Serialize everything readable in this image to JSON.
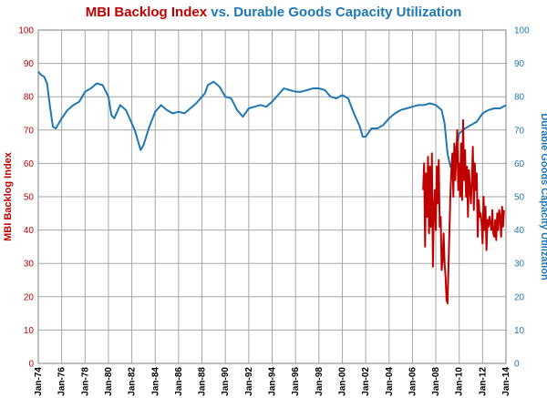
{
  "chart_data": {
    "type": "line",
    "title": {
      "part1": "MBI Backlog Index",
      "part2": " vs. ",
      "part3": "Durable Goods Capacity Utilization"
    },
    "ylabel_left": "MBI Backlog Index",
    "ylabel_right": "Durable Goods Capacity Utilization",
    "ylim": [
      0,
      100
    ],
    "yticks": [
      0,
      10,
      20,
      30,
      40,
      50,
      60,
      70,
      80,
      90,
      100
    ],
    "xlim": [
      "1974-01",
      "2014-01"
    ],
    "xticks": [
      "Jan-74",
      "Jan-76",
      "Jan-78",
      "Jan-80",
      "Jan-82",
      "Jan-84",
      "Jan-86",
      "Jan-88",
      "Jan-90",
      "Jan-92",
      "Jan-94",
      "Jan-96",
      "Jan-98",
      "Jan-00",
      "Jan-02",
      "Jan-04",
      "Jan-06",
      "Jan-08",
      "Jan-10",
      "Jan-12",
      "Jan-14"
    ],
    "grid": true,
    "colors": {
      "backlog": "#c00000",
      "capacity": "#1f78b4",
      "title_left": "#c00000",
      "title_right": "#1f78b4",
      "grid": "#a6a6a6"
    },
    "series": [
      {
        "key": "capacity",
        "axis": "right",
        "x": [
          "1974-01",
          "1974-04",
          "1974-07",
          "1974-10",
          "1975-01",
          "1975-04",
          "1975-07",
          "1976-01",
          "1976-07",
          "1977-01",
          "1977-07",
          "1978-01",
          "1978-07",
          "1979-01",
          "1979-07",
          "1980-01",
          "1980-04",
          "1980-07",
          "1980-10",
          "1981-01",
          "1981-07",
          "1981-10",
          "1982-04",
          "1982-07",
          "1982-10",
          "1983-01",
          "1983-07",
          "1984-01",
          "1984-07",
          "1985-01",
          "1985-07",
          "1986-01",
          "1986-07",
          "1987-01",
          "1987-07",
          "1988-01",
          "1988-04",
          "1988-07",
          "1989-01",
          "1989-07",
          "1990-01",
          "1990-07",
          "1991-01",
          "1991-07",
          "1992-01",
          "1992-07",
          "1993-01",
          "1993-07",
          "1994-01",
          "1994-07",
          "1995-01",
          "1995-07",
          "1996-01",
          "1996-07",
          "1997-01",
          "1997-07",
          "1998-01",
          "1998-07",
          "1999-01",
          "1999-07",
          "2000-01",
          "2000-07",
          "2001-01",
          "2001-07",
          "2001-10",
          "2002-01",
          "2002-07",
          "2003-01",
          "2003-07",
          "2004-01",
          "2004-07",
          "2005-01",
          "2005-07",
          "2006-01",
          "2006-07",
          "2007-01",
          "2007-07",
          "2008-01",
          "2008-07",
          "2008-10",
          "2009-01",
          "2009-04",
          "2009-07",
          "2009-10",
          "2010-01",
          "2010-07",
          "2011-01",
          "2011-07",
          "2012-01",
          "2012-07",
          "2013-01",
          "2013-07",
          "2014-01"
        ],
        "values": [
          87.5,
          86.5,
          86,
          84,
          77,
          71,
          70.5,
          73.5,
          76,
          77.5,
          78.5,
          81.5,
          82.5,
          84,
          83.5,
          80,
          74.5,
          73.5,
          75.5,
          77.5,
          76,
          74,
          70,
          67,
          64,
          65.5,
          71,
          75.5,
          77.5,
          76,
          75,
          75.5,
          75,
          76.5,
          78,
          80,
          81,
          83.5,
          84.5,
          83,
          80,
          79.5,
          76,
          74,
          76.5,
          77,
          77.5,
          77,
          78.5,
          80.5,
          82.5,
          82,
          81.5,
          81.5,
          82,
          82.5,
          82.5,
          82,
          80,
          79.5,
          80.5,
          79.5,
          75,
          71,
          68,
          68,
          70.5,
          70.5,
          71.5,
          73.5,
          75,
          76,
          76.5,
          77,
          77.5,
          77.5,
          78,
          77.5,
          76,
          72,
          63,
          59,
          61,
          65,
          69,
          70.5,
          71.5,
          72.5,
          75,
          76,
          76.5,
          76.5,
          77.5
        ]
      },
      {
        "key": "backlog",
        "axis": "left",
        "x": [
          "2006-12",
          "2007-01",
          "2007-02",
          "2007-03",
          "2007-04",
          "2007-05",
          "2007-06",
          "2007-07",
          "2007-08",
          "2007-09",
          "2007-10",
          "2007-11",
          "2007-12",
          "2008-01",
          "2008-02",
          "2008-03",
          "2008-04",
          "2008-05",
          "2008-06",
          "2008-07",
          "2008-08",
          "2008-09",
          "2008-10",
          "2008-11",
          "2008-12",
          "2009-01",
          "2009-02",
          "2009-03",
          "2009-04",
          "2009-05",
          "2009-06",
          "2009-07",
          "2009-08",
          "2009-09",
          "2009-10",
          "2009-11",
          "2009-12",
          "2010-01",
          "2010-02",
          "2010-03",
          "2010-04",
          "2010-05",
          "2010-06",
          "2010-07",
          "2010-08",
          "2010-09",
          "2010-10",
          "2010-11",
          "2010-12",
          "2011-01",
          "2011-02",
          "2011-03",
          "2011-04",
          "2011-05",
          "2011-06",
          "2011-07",
          "2011-08",
          "2011-09",
          "2011-10",
          "2011-11",
          "2011-12",
          "2012-01",
          "2012-02",
          "2012-03",
          "2012-04",
          "2012-05",
          "2012-06",
          "2012-07",
          "2012-08",
          "2012-09",
          "2012-10",
          "2012-11",
          "2012-12",
          "2013-01",
          "2013-02",
          "2013-03",
          "2013-04",
          "2013-05",
          "2013-06",
          "2013-07",
          "2013-08",
          "2013-09",
          "2013-10",
          "2013-11"
        ],
        "values": [
          52,
          60,
          35,
          57,
          44,
          62,
          39,
          59,
          41,
          63,
          29,
          46,
          52,
          40,
          59,
          48,
          61,
          41,
          44,
          28,
          31,
          39,
          30,
          26,
          19,
          18,
          29,
          40,
          51,
          58,
          63,
          50,
          66,
          55,
          62,
          70,
          52,
          60,
          50,
          66,
          49,
          73,
          55,
          64,
          50,
          59,
          44,
          58,
          53,
          48,
          55,
          65,
          46,
          60,
          52,
          57,
          38,
          49,
          44,
          45,
          42,
          36,
          50,
          40,
          47,
          34,
          43,
          41,
          44,
          42,
          40,
          46,
          39,
          38,
          43,
          37,
          45,
          40,
          46,
          44,
          38,
          47,
          41,
          46
        ]
      }
    ]
  }
}
